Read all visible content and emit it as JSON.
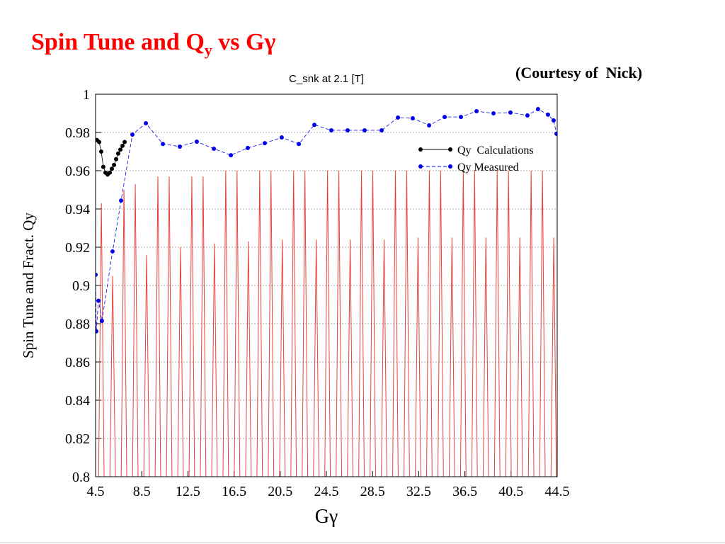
{
  "chart_data": {
    "type": "line",
    "title": [
      "Spin Tune and Q",
      "y",
      " vs Gγ"
    ],
    "subtitle": "C_snk at 2.1 [T]",
    "annotation": "(Courtesy of  Nick)",
    "xlabel": "Gγ",
    "ylabel": "Spin Tune and Fract. Qy",
    "xlim": [
      4.5,
      44.5
    ],
    "ylim": [
      0.8,
      1
    ],
    "xticks": [
      4.5,
      8.5,
      12.5,
      16.5,
      20.5,
      24.5,
      28.5,
      32.5,
      36.5,
      40.5,
      44.5
    ],
    "yticks": [
      0.8,
      0.82,
      0.84,
      0.86,
      0.88,
      0.9,
      0.92,
      0.94,
      0.96,
      0.98,
      1
    ],
    "grid": true,
    "legend": "right",
    "series": [
      {
        "name": "Qy  Calculations",
        "color": "#000000",
        "style": "solid",
        "x": [
          4.62,
          4.81,
          4.99,
          5.17,
          5.36,
          5.54,
          5.73,
          5.91,
          6.1,
          6.28,
          6.46,
          6.65,
          6.83,
          7.02
        ],
        "values": [
          0.976,
          0.975,
          0.97,
          0.962,
          0.959,
          0.958,
          0.959,
          0.961,
          0.963,
          0.966,
          0.969,
          0.971,
          0.973,
          0.975
        ]
      },
      {
        "name": "Qy Measured",
        "color": "#0000ee",
        "style": "dashed",
        "x": [
          4.5,
          4.56,
          4.75,
          5.05,
          5.97,
          6.71,
          7.69,
          8.86,
          10.33,
          11.8,
          13.27,
          14.75,
          16.22,
          17.69,
          19.16,
          20.63,
          22.11,
          23.46,
          24.93,
          26.34,
          27.81,
          29.29,
          30.7,
          31.98,
          33.4,
          34.75,
          36.16,
          37.51,
          38.98,
          40.45,
          41.92,
          42.84,
          43.7,
          44.19,
          44.44
        ],
        "values": [
          0.9056,
          0.876,
          0.892,
          0.8815,
          0.9178,
          0.9444,
          0.9789,
          0.9848,
          0.974,
          0.9726,
          0.9752,
          0.9715,
          0.9681,
          0.9719,
          0.9744,
          0.9774,
          0.974,
          0.984,
          0.9811,
          0.9811,
          0.9811,
          0.9811,
          0.9878,
          0.9874,
          0.9837,
          0.9881,
          0.9881,
          0.9911,
          0.99,
          0.9904,
          0.9889,
          0.9922,
          0.9893,
          0.9863,
          0.9793
        ]
      }
    ],
    "spin_tune": {
      "color": "#e8413c",
      "x": [
        5,
        5.98,
        6.96,
        7.94,
        8.92,
        9.9,
        10.88,
        11.86,
        12.84,
        13.82,
        14.8,
        15.78,
        16.76,
        17.74,
        18.72,
        19.7,
        20.68,
        21.66,
        22.64,
        23.62,
        24.6,
        25.58,
        26.56,
        27.54,
        28.52,
        29.5,
        30.48,
        31.46,
        32.44,
        33.42,
        34.4,
        35.38,
        36.36,
        37.34,
        38.32,
        39.3,
        40.28,
        41.26,
        42.24,
        43.22,
        44.2
      ],
      "values": [
        0.943,
        0.905,
        0.95,
        0.953,
        0.916,
        0.957,
        0.957,
        0.92,
        0.957,
        0.957,
        0.922,
        0.96,
        0.96,
        0.923,
        0.96,
        0.96,
        0.924,
        0.96,
        0.96,
        0.924,
        0.96,
        0.96,
        0.924,
        0.96,
        0.96,
        0.924,
        0.96,
        0.96,
        0.925,
        0.96,
        0.96,
        0.925,
        0.96,
        0.96,
        0.925,
        0.96,
        0.96,
        0.925,
        0.96,
        0.96,
        0.925
      ]
    }
  }
}
